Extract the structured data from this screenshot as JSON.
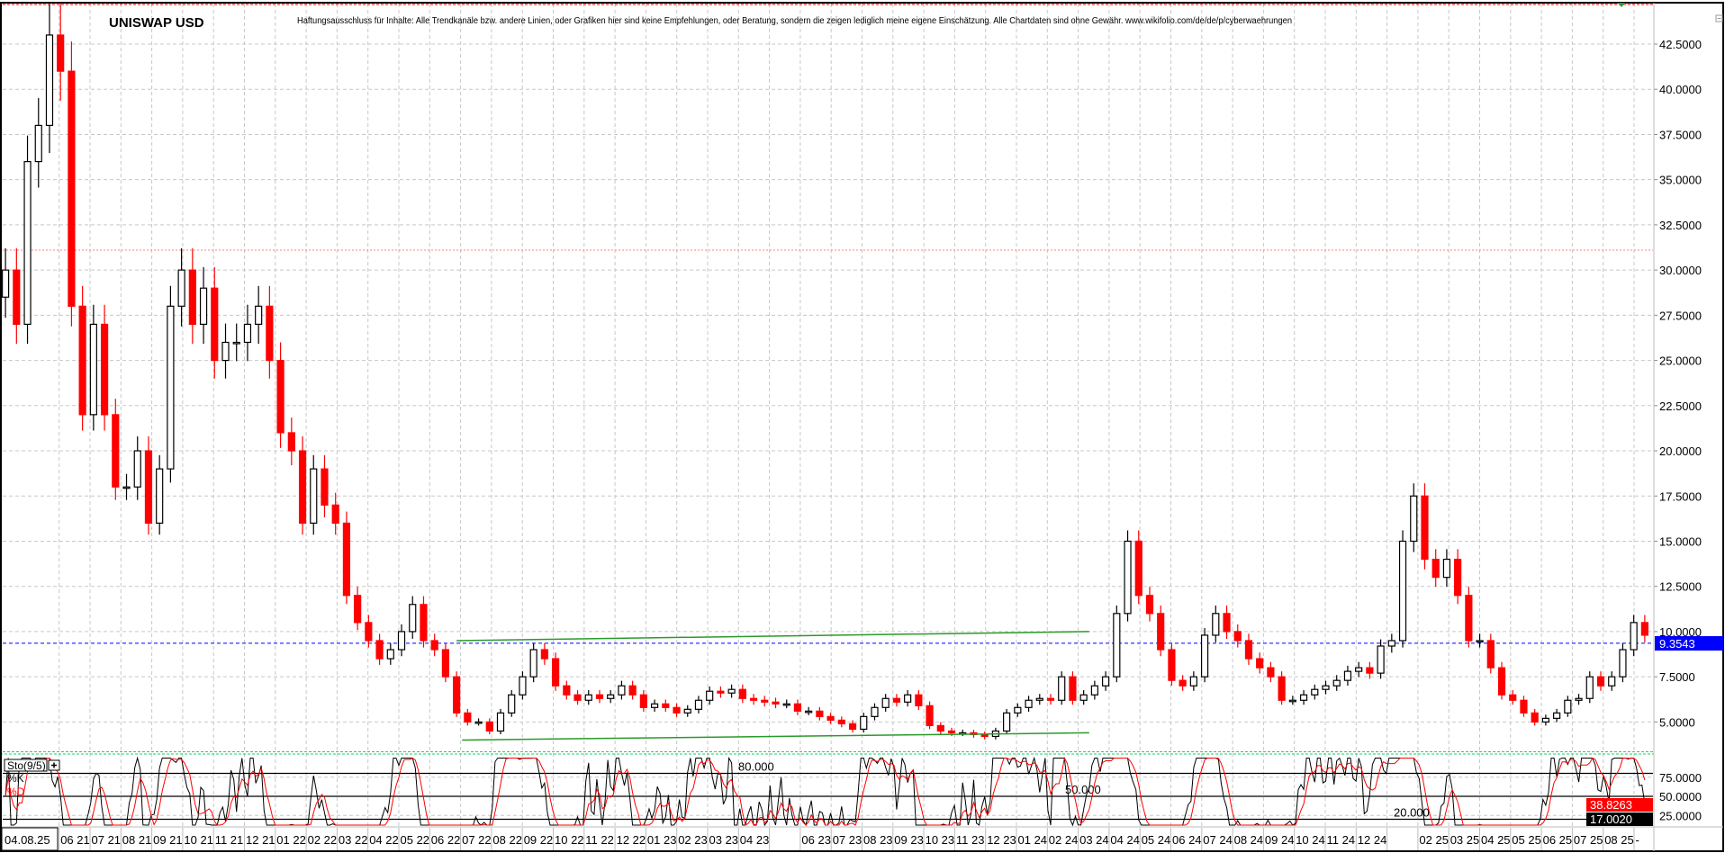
{
  "header": {
    "title": "UNISWAP USD",
    "disclaimer": "Haftungsausschluss für Inhalte: Alle Trendkanäle bzw. andere Linien, oder Grafiken hier sind keine Empfehlungen, oder Beratung, sondern die zeigen lediglich meine eigene Einschätzung. Alle Chartdaten sind ohne Gewähr.  www.wikifolio.com/de/de/p/cyberwaehrungen"
  },
  "colors": {
    "up_body": "#ffffff",
    "up_border": "#000000",
    "down": "#ff0000",
    "trendline": "#2a9a2a",
    "current_price": "#0000ff",
    "k_line": "#000000",
    "d_line": "#ff0000"
  },
  "chart_data": [
    {
      "type": "candlestick",
      "title": "UNISWAP USD",
      "ylim": [
        3.35,
        44.7
      ],
      "y_ticks": [
        "42.5000",
        "40.0000",
        "37.5000",
        "35.0000",
        "32.5000",
        "30.0000",
        "27.5000",
        "25.0000",
        "22.5000",
        "20.0000",
        "17.5000",
        "15.0000",
        "12.5000",
        "10.0000",
        "7.5000",
        "5.0000"
      ],
      "x_labels": [
        "06 21",
        "07 21",
        "08 21",
        "09 21",
        "10 21",
        "11 21",
        "12 21",
        "01 22",
        "02 22",
        "03 22",
        "04 22",
        "05 22",
        "06 22",
        "07 22",
        "08 22",
        "09 22",
        "10 22",
        "11 22",
        "12 22",
        "01 23",
        "02 23",
        "03 23",
        "04 23",
        "",
        "06 23",
        "07 23",
        "08 23",
        "09 23",
        "10 23",
        "11 23",
        "12 23",
        "01 24",
        "02 24",
        "03 24",
        "04 24",
        "05 24",
        "06 24",
        "07 24",
        "08 24",
        "09 24",
        "10 24",
        "11 24",
        "12 24",
        "",
        "02 25",
        "03 25",
        "04 25",
        "05 25",
        "06 25",
        "07 25",
        "08 25",
        "-"
      ],
      "current_date": "04.08.25",
      "current_price": "9.3543",
      "grid": true,
      "closes": [
        30,
        27,
        36,
        38,
        43,
        41,
        28,
        22,
        27,
        22,
        18,
        18,
        20,
        16,
        19,
        28,
        30,
        27,
        29,
        25,
        26,
        26,
        27,
        28,
        25,
        21,
        20,
        16,
        19,
        17,
        16,
        12,
        10.5,
        9.5,
        8.5,
        9,
        10,
        11.5,
        9.5,
        9,
        7.5,
        5.5,
        5,
        5,
        4.5,
        5.5,
        6.5,
        7.5,
        9,
        8.5,
        7,
        6.5,
        6.2,
        6.5,
        6.3,
        6.5,
        7,
        6.5,
        5.8,
        6,
        5.8,
        5.5,
        5.7,
        6.2,
        6.7,
        6.6,
        6.8,
        6.3,
        6.2,
        6.1,
        6,
        6,
        5.6,
        5.6,
        5.3,
        5.1,
        4.9,
        4.6,
        5.3,
        5.8,
        6.3,
        6.1,
        6.5,
        5.9,
        4.8,
        4.5,
        4.4,
        4.4,
        4.3,
        4.2,
        4.5,
        5.5,
        5.8,
        6.2,
        6.3,
        6.2,
        7.5,
        6.2,
        6.5,
        7,
        7.5,
        11,
        15,
        12,
        11,
        9,
        7.3,
        7,
        7.5,
        9.8,
        11,
        10,
        9.5,
        8.5,
        8,
        7.5,
        6.2,
        6.2,
        6.5,
        6.8,
        7,
        7.3,
        7.8,
        8,
        7.7,
        9.2,
        9.5,
        15,
        17.5,
        14,
        13,
        14,
        12,
        9.5,
        9.5,
        8,
        6.5,
        6.2,
        5.5,
        5,
        5.2,
        5.5,
        6.2,
        6.3,
        7.5,
        7,
        7.5,
        9,
        10.5,
        9.8
      ],
      "reference_lines": {
        "upper_dotted": 44.7,
        "resistance_dotted": 31.1,
        "lower_dotted": 3.35
      },
      "trendlines": [
        {
          "from_index": 41,
          "from_price": 9.5,
          "to_index": 98.5,
          "to_price": 10.0
        },
        {
          "from_index": 41.5,
          "from_price": 4.0,
          "to_index": 98.5,
          "to_price": 4.4
        }
      ]
    },
    {
      "type": "line",
      "title": "Sto(9/5)",
      "series": [
        {
          "name": "%K"
        },
        {
          "name": "%D"
        }
      ],
      "ylim": [
        0,
        100
      ],
      "y_ticks": [
        "75.0000",
        "50.0000",
        "25.0000"
      ],
      "levels": [
        {
          "value": 80,
          "label": "80.000"
        },
        {
          "value": 50,
          "label": "50.000"
        },
        {
          "value": 20,
          "label": "20.000"
        }
      ],
      "last_d": "38.8263",
      "last_k": "17.0020"
    }
  ]
}
